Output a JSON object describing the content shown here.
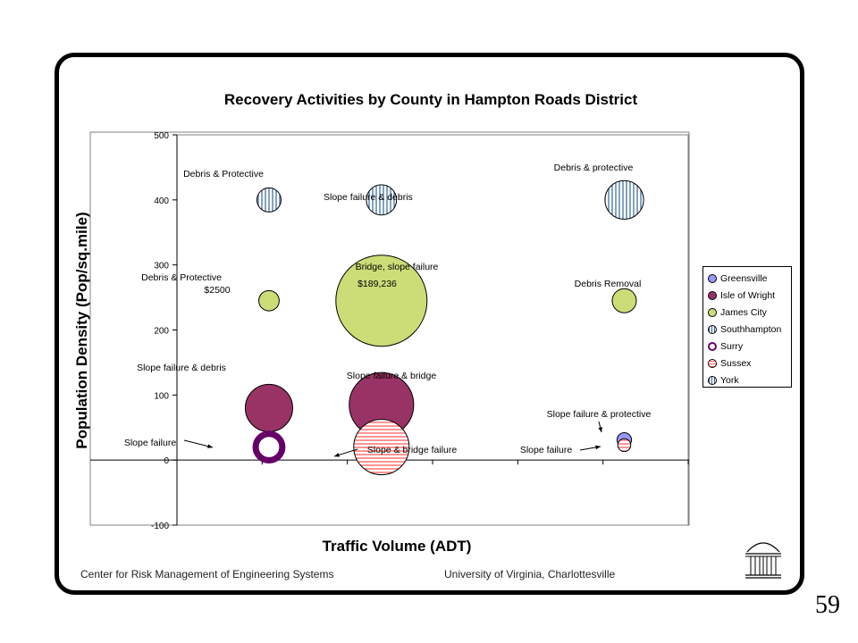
{
  "chart_data": {
    "type": "bubble",
    "title": "Recovery Activities by County in Hampton Roads District",
    "xlabel": "Traffic Volume (ADT)",
    "ylabel": "Population Density (Pop/sq.mile)",
    "ylim": [
      -100,
      500
    ],
    "yticks": [
      -100,
      0,
      100,
      200,
      300,
      400,
      500
    ],
    "y_grid": false,
    "legend_position": "right",
    "series": [
      {
        "name": "Greensville",
        "color": "#9999ff",
        "pattern": "solid",
        "points": [
          {
            "x_frac": 0.875,
            "y": 31,
            "size": 0.025,
            "label": "Slope failure & protective"
          }
        ]
      },
      {
        "name": "Isle of Wright",
        "color": "#993366",
        "pattern": "solid",
        "points": [
          {
            "x_frac": 0.18,
            "y": 80,
            "size": 0.27,
            "label": "Slope failure & debris"
          },
          {
            "x_frac": 0.4,
            "y": 85,
            "size": 0.5,
            "label": "Slope failure & bridge"
          }
        ]
      },
      {
        "name": "James City",
        "color": "#ccdd77",
        "pattern": "solid",
        "points": [
          {
            "x_frac": 0.18,
            "y": 245,
            "size": 0.05,
            "label": "Debris & Protective $2500"
          },
          {
            "x_frac": 0.4,
            "y": 245,
            "size": 1.0,
            "label": "Bridge, slope failure $189,236"
          },
          {
            "x_frac": 0.875,
            "y": 245,
            "size": 0.07,
            "label": "Debris Removal"
          }
        ]
      },
      {
        "name": "Southhampton",
        "color": "#ccecff",
        "pattern": "vertical-lines",
        "points": [
          {
            "x_frac": 0.18,
            "y": 400,
            "size": 0.07,
            "label": "Debris & Protective"
          },
          {
            "x_frac": 0.4,
            "y": 400,
            "size": 0.11,
            "label": "Slope failure & debris"
          },
          {
            "x_frac": 0.875,
            "y": 400,
            "size": 0.18,
            "label": "Debris & protective"
          }
        ]
      },
      {
        "name": "Surry",
        "color": "#660066",
        "pattern": "ring",
        "points": [
          {
            "x_frac": 0.18,
            "y": 20,
            "size": 0.13,
            "label": "Slope failure"
          }
        ]
      },
      {
        "name": "Sussex",
        "color": "#ff9999",
        "pattern": "horizontal-lines",
        "points": [
          {
            "x_frac": 0.4,
            "y": 20,
            "size": 0.37,
            "label": "Slope & bridge failure"
          },
          {
            "x_frac": 0.875,
            "y": 23,
            "size": 0.02,
            "label": "Slope failure"
          }
        ]
      },
      {
        "name": "York",
        "color": "#ffffff",
        "pattern": "vertical-lines",
        "points": []
      }
    ]
  },
  "footer": {
    "left": "Center for Risk Management of Engineering Systems",
    "right": "University of Virginia, Charlottesville"
  },
  "slide_number": "59",
  "logo_icon": "rotunda-icon"
}
